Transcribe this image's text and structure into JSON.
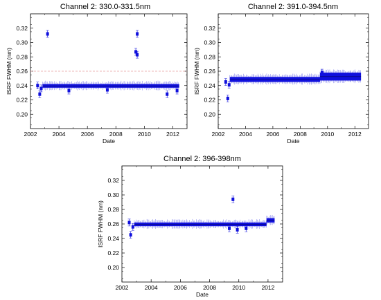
{
  "chart_data": [
    {
      "type": "scatter",
      "title": "Channel 2: 330.0-331.5nm",
      "xlabel": "Date",
      "ylabel": "ISRF FWHM (nm)",
      "xlim": [
        2002,
        2013
      ],
      "ylim": [
        0.18,
        0.34
      ],
      "xticks": [
        "2002",
        "2004",
        "2006",
        "2008",
        "2010",
        "2012"
      ],
      "yticks": [
        "0.20",
        "0.22",
        "0.24",
        "0.26",
        "0.28",
        "0.30",
        "0.32"
      ],
      "reference_line": {
        "y": 0.26,
        "style": "dashed",
        "color": "#e8a0a0"
      },
      "series": [
        {
          "color": "#1010dd",
          "band": {
            "x": [
              2002.85,
              2012.45
            ],
            "y": [
              0.237,
              0.242
            ]
          },
          "points": [
            {
              "x": 2002.5,
              "y": 0.24
            },
            {
              "x": 2002.65,
              "y": 0.228
            },
            {
              "x": 2002.75,
              "y": 0.236
            },
            {
              "x": 2003.2,
              "y": 0.312
            },
            {
              "x": 2009.5,
              "y": 0.312
            },
            {
              "x": 2009.5,
              "y": 0.283
            },
            {
              "x": 2009.4,
              "y": 0.287
            },
            {
              "x": 2011.6,
              "y": 0.228
            },
            {
              "x": 2012.3,
              "y": 0.233
            },
            {
              "x": 2004.7,
              "y": 0.233
            },
            {
              "x": 2007.4,
              "y": 0.234
            }
          ]
        }
      ]
    },
    {
      "type": "scatter",
      "title": "Channel 2: 391.0-394.5nm",
      "xlabel": "Date",
      "ylabel": "ISRF FWHM (nm)",
      "xlim": [
        2002,
        2013
      ],
      "ylim": [
        0.18,
        0.34
      ],
      "xticks": [
        "2002",
        "2004",
        "2006",
        "2008",
        "2010",
        "2012"
      ],
      "yticks": [
        "0.20",
        "0.22",
        "0.24",
        "0.26",
        "0.28",
        "0.30",
        "0.32"
      ],
      "series": [
        {
          "color": "#1010dd",
          "band": {
            "x": [
              2002.85,
              2009.45
            ],
            "y": [
              0.245,
              0.252
            ]
          },
          "points": [
            {
              "x": 2002.55,
              "y": 0.245
            },
            {
              "x": 2002.7,
              "y": 0.222
            },
            {
              "x": 2002.8,
              "y": 0.241
            },
            {
              "x": 2009.6,
              "y": 0.258
            }
          ]
        },
        {
          "color": "#1010dd",
          "band": {
            "x": [
              2009.45,
              2012.45
            ],
            "y": [
              0.247,
              0.258
            ]
          },
          "points": []
        }
      ]
    },
    {
      "type": "scatter",
      "title": "Channel 2: 396-398nm",
      "xlabel": "Date",
      "ylabel": "ISRF FWHM (nm)",
      "xlim": [
        2002,
        2013
      ],
      "ylim": [
        0.18,
        0.34
      ],
      "xticks": [
        "2002",
        "2004",
        "2006",
        "2008",
        "2010",
        "2012"
      ],
      "yticks": [
        "0.20",
        "0.22",
        "0.24",
        "0.26",
        "0.28",
        "0.30",
        "0.32"
      ],
      "series": [
        {
          "color": "#1010dd",
          "band": {
            "x": [
              2002.85,
              2011.9
            ],
            "y": [
              0.257,
              0.262
            ]
          },
          "points": [
            {
              "x": 2002.5,
              "y": 0.262
            },
            {
              "x": 2002.6,
              "y": 0.245
            },
            {
              "x": 2002.75,
              "y": 0.256
            },
            {
              "x": 2009.6,
              "y": 0.294
            },
            {
              "x": 2009.35,
              "y": 0.254
            },
            {
              "x": 2009.9,
              "y": 0.252
            },
            {
              "x": 2010.5,
              "y": 0.254
            }
          ]
        },
        {
          "color": "#1010dd",
          "band": {
            "x": [
              2011.9,
              2012.45
            ],
            "y": [
              0.262,
              0.268
            ]
          },
          "points": []
        }
      ]
    }
  ]
}
